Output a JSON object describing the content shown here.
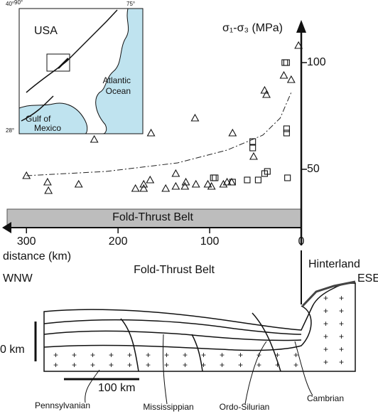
{
  "chart_data": {
    "type": "scatter",
    "y_label": "σ₁-σ₃ (MPa)",
    "x_label": "distance (km)",
    "band_label": "Fold-Thrust Belt",
    "xlim": [
      325,
      0
    ],
    "xticks": [
      300,
      200,
      100,
      0
    ],
    "ylim": [
      25,
      118
    ],
    "yticks": [
      50,
      100
    ],
    "series": [
      {
        "marker": "triangle",
        "color": "#111111",
        "x": [
          300,
          277,
          276,
          243,
          226,
          181,
          172,
          172,
          165,
          164,
          148,
          137,
          137,
          127,
          126,
          116,
          115,
          102,
          98,
          85,
          81,
          76,
          75,
          52,
          40,
          38,
          19,
          3,
          11
        ],
        "values": [
          47,
          44,
          40,
          43,
          64,
          41,
          41,
          43,
          45,
          67,
          41,
          42,
          48,
          42,
          44,
          74,
          43,
          43,
          42,
          43,
          44,
          44,
          67,
          56,
          87,
          85,
          94,
          108,
          92
        ]
      },
      {
        "marker": "square",
        "color": "#111111",
        "x": [
          96,
          94,
          75,
          59,
          47,
          37,
          40,
          53,
          53,
          16,
          16,
          15,
          18,
          16
        ],
        "values": [
          46,
          46,
          44,
          45,
          45,
          49,
          48,
          63,
          60,
          69,
          67,
          46,
          100,
          100
        ]
      }
    ],
    "trend_line": {
      "x": [
        300,
        213,
        135,
        81,
        42,
        23,
        11
      ],
      "values": [
        47,
        49,
        53,
        59,
        66,
        74,
        86
      ]
    }
  },
  "map": {
    "country": "USA",
    "ocean": [
      "Atlantic",
      "Ocean"
    ],
    "gulf": [
      "Gulf of",
      "Mexico"
    ],
    "corners": [
      "40°",
      "90°",
      "75°",
      "28°"
    ]
  },
  "section": {
    "hinterland": "Hinterland",
    "west": "WNW",
    "east": "ESE",
    "belt": "Fold-Thrust Belt",
    "depth_scale": "0 km",
    "length_scale": "100 km",
    "units": [
      "Pennsylvanian",
      "Mississippian",
      "Ordo-Silurian",
      "Cambrian"
    ]
  }
}
